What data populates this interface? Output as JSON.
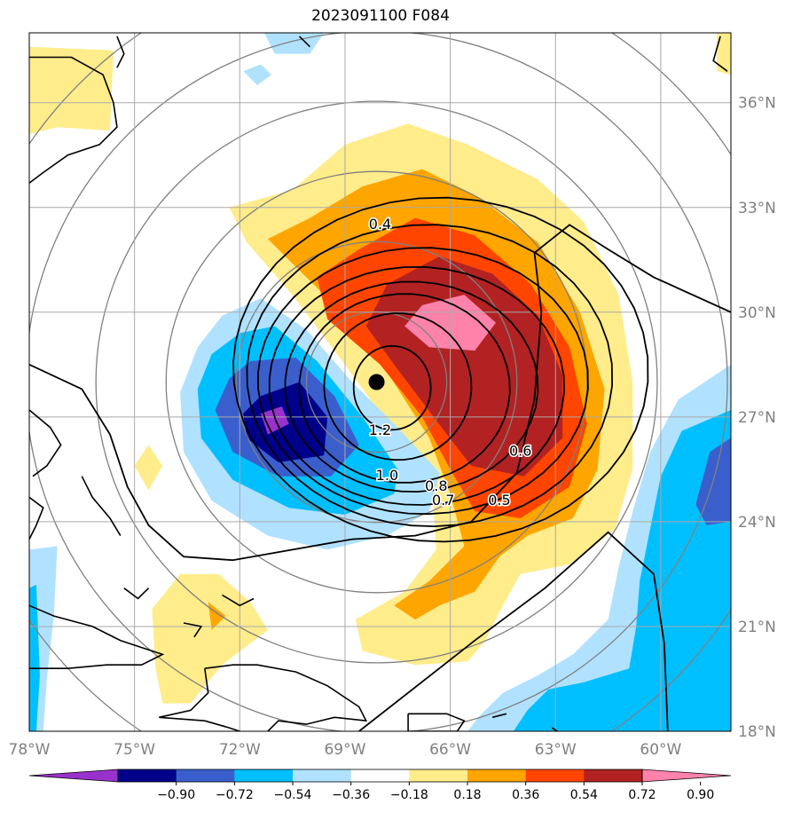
{
  "title": "2023091100 F084",
  "map": {
    "lon_range": [
      -78,
      -58
    ],
    "lat_range": [
      18,
      38
    ],
    "lon_ticks": [
      {
        "value": -78,
        "label": "78°W"
      },
      {
        "value": -75,
        "label": "75°W"
      },
      {
        "value": -72,
        "label": "72°W"
      },
      {
        "value": -69,
        "label": "69°W"
      },
      {
        "value": -66,
        "label": "66°W"
      },
      {
        "value": -63,
        "label": "63°W"
      },
      {
        "value": -60,
        "label": "60°W"
      }
    ],
    "lat_ticks": [
      {
        "value": 18,
        "label": "18°N"
      },
      {
        "value": 21,
        "label": "21°N"
      },
      {
        "value": 24,
        "label": "24°N"
      },
      {
        "value": 27,
        "label": "27°N"
      },
      {
        "value": 30,
        "label": "30°N"
      },
      {
        "value": 33,
        "label": "33°N"
      },
      {
        "value": 36,
        "label": "36°N"
      }
    ],
    "storm_center": {
      "lon": -68.1,
      "lat": 28.0
    },
    "contour_labels": [
      {
        "text": "0.4",
        "lon": -68.0,
        "lat": 32.5
      },
      {
        "text": "1.2",
        "lon": -68.0,
        "lat": 26.6
      },
      {
        "text": "1.0",
        "lon": -67.8,
        "lat": 25.3
      },
      {
        "text": "0.8",
        "lon": -66.4,
        "lat": 25.0
      },
      {
        "text": "0.7",
        "lon": -66.2,
        "lat": 24.6
      },
      {
        "text": "0.5",
        "lon": -64.6,
        "lat": 24.6
      },
      {
        "text": "0.6",
        "lon": -64.0,
        "lat": 26.0
      }
    ]
  },
  "colorbar": {
    "colors": [
      "#9932cc",
      "#00008b",
      "#3a5fcd",
      "#00bfff",
      "#b0e2ff",
      "#ffffff",
      "#ffec8b",
      "#ffa500",
      "#ff4500",
      "#b22222",
      "#ff82ab"
    ],
    "labels": [
      "−0.90",
      "−0.72",
      "−0.54",
      "−0.36",
      "−0.18",
      "0.18",
      "0.36",
      "0.54",
      "0.72",
      "0.90"
    ]
  },
  "colors": {
    "coast": "#000000",
    "grid": "#a9a9a9",
    "range_rings": "#808080",
    "contours": "#000000"
  }
}
